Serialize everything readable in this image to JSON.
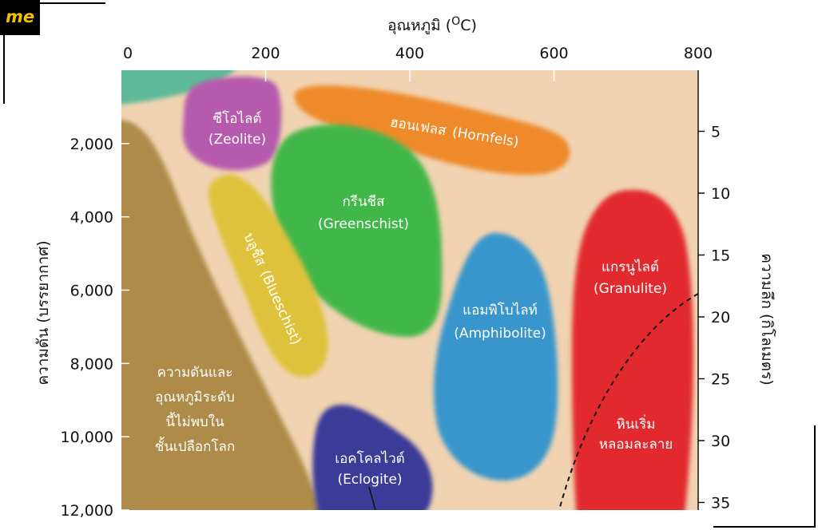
{
  "logo": {
    "text": "me"
  },
  "chart_data": {
    "type": "area",
    "title": "",
    "x_axis": {
      "label": "อุณหภูมิ (°C)",
      "label_main": "อุณหภูมิ (",
      "label_sup": "O",
      "label_end": "C)",
      "position": "top",
      "range": [
        0,
        800
      ],
      "ticks": [
        0,
        200,
        400,
        600,
        800
      ],
      "tick_labels": [
        "0",
        "200",
        "400",
        "600",
        "800"
      ]
    },
    "y_axis_left": {
      "label": "ความดัน (บรรยากาศ)",
      "range": [
        12000,
        0
      ],
      "ticks": [
        2000,
        4000,
        6000,
        8000,
        10000,
        12000
      ],
      "tick_labels": [
        "2,000",
        "4,000",
        "6,000",
        "8,000",
        "10,000",
        "12,000"
      ]
    },
    "y_axis_right": {
      "label": "ความลึก (กิโลเมตร)",
      "ticks": [
        5,
        10,
        15,
        20,
        25,
        30,
        35
      ],
      "tick_labels": [
        "5",
        "10",
        "15",
        "20",
        "25",
        "30",
        "35"
      ]
    },
    "colors": {
      "background": "#f1d3b1",
      "not_found": "#ae8b49",
      "corner": "#5db999",
      "zeolite": "#b65aad",
      "hornfels": "#ee8a2c",
      "greenschist": "#42b749",
      "blueschist": "#dec23a",
      "amphibolite": "#3896cc",
      "granulite": "#e22a2e",
      "eclogite": "#3b3b98"
    },
    "regions": [
      {
        "name": "ซีโอไลต์",
        "name_en": "(Zeolite)",
        "temp_c": [
          90,
          210
        ],
        "pressure_atm": [
          300,
          3000
        ]
      },
      {
        "name": "ฮอนเฟลส",
        "name_en": "(Hornfels)",
        "temp_c": [
          235,
          610
        ],
        "pressure_atm": [
          500,
          3300
        ]
      },
      {
        "name": "กรีนชีส",
        "name_en": "(Greenschist)",
        "temp_c": [
          200,
          440
        ],
        "pressure_atm": [
          1700,
          7800
        ]
      },
      {
        "name": "บลูชีส",
        "name_en": "(Blueschist)",
        "temp_c": [
          115,
          275
        ],
        "pressure_atm": [
          3000,
          8800
        ]
      },
      {
        "name": "แอมพิโบไลท์",
        "name_en": "(Amphibolite)",
        "temp_c": [
          420,
          580
        ],
        "pressure_atm": [
          4500,
          11000
        ]
      },
      {
        "name": "แกรนูไลต์",
        "name_en": "(Granulite)",
        "temp_c": [
          615,
          770
        ],
        "pressure_atm": [
          3400,
          12000
        ]
      },
      {
        "name": "เอคโคลไวต์",
        "name_en": "(Eclogite)",
        "temp_c": [
          255,
          415
        ],
        "pressure_atm": [
          9800,
          12000
        ]
      }
    ],
    "annotations": {
      "not_found_lines": [
        "ความดันและ",
        "อุณหภูมิระดับ",
        "นี้ไม่พบใน",
        "ชั้นเปลือกโลก"
      ],
      "melting_lines": [
        "หินเริ่ม",
        "หลอมละลาย"
      ]
    }
  }
}
